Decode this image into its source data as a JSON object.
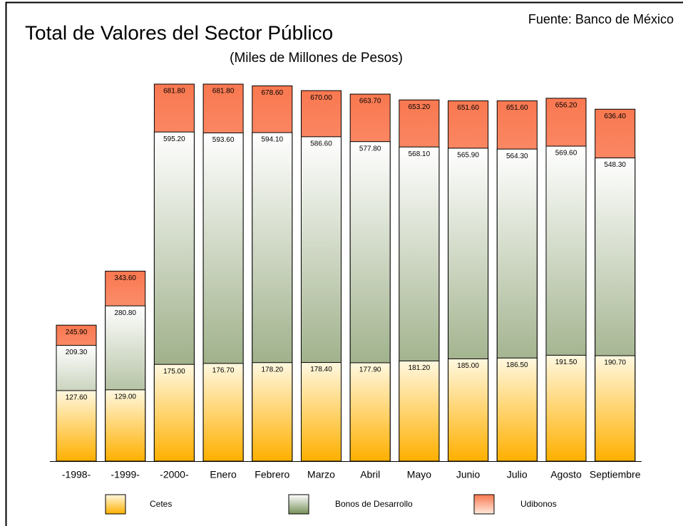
{
  "chart_data": {
    "type": "bar",
    "title": "Total de Valores del Sector Público",
    "subtitle": "(Miles de Millones de Pesos)",
    "source": "Fuente: Banco de México",
    "categories": [
      "-1998-",
      "-1999-",
      "-2000-",
      "Enero",
      "Febrero",
      "Marzo",
      "Abril",
      "Mayo",
      "Junio",
      "Julio",
      "Agosto",
      "Septiembre"
    ],
    "series": [
      {
        "name": "Cetes",
        "color": "#ffb000",
        "values": [
          127.6,
          129,
          175,
          176.7,
          178.2,
          178.4,
          177.9,
          181.2,
          185,
          186.5,
          191.5,
          190.7
        ],
        "value_labels": [
          "127.60",
          "129.00",
          "175.00",
          "176.70",
          "178.20",
          "178.40",
          "177.90",
          "181.20",
          "185.00",
          "186.50",
          "191.50",
          "190.70"
        ]
      },
      {
        "name": "Bonos de Desarrollo",
        "color": "#78905a",
        "values": [
          209.3,
          280.8,
          595.2,
          593.6,
          594.1,
          586.6,
          577.8,
          568.1,
          565.9,
          564.3,
          569.6,
          548.3
        ],
        "value_labels": [
          "209.30",
          "280.80",
          "595.20",
          "593.60",
          "594.10",
          "586.60",
          "577.80",
          "568.10",
          "565.90",
          "564.30",
          "569.60",
          "548.30"
        ]
      },
      {
        "name": "Udibonos",
        "color": "#f97850",
        "values": [
          245.9,
          343.6,
          681.8,
          681.8,
          678.6,
          670,
          663.7,
          653.2,
          651.6,
          651.6,
          656.2,
          636.4
        ],
        "value_labels": [
          "245.90",
          "343.60",
          "681.80",
          "681.80",
          "678.60",
          "670.00",
          "663.70",
          "653.20",
          "651.60",
          "651.60",
          "656.20",
          "636.40"
        ]
      }
    ]
  }
}
